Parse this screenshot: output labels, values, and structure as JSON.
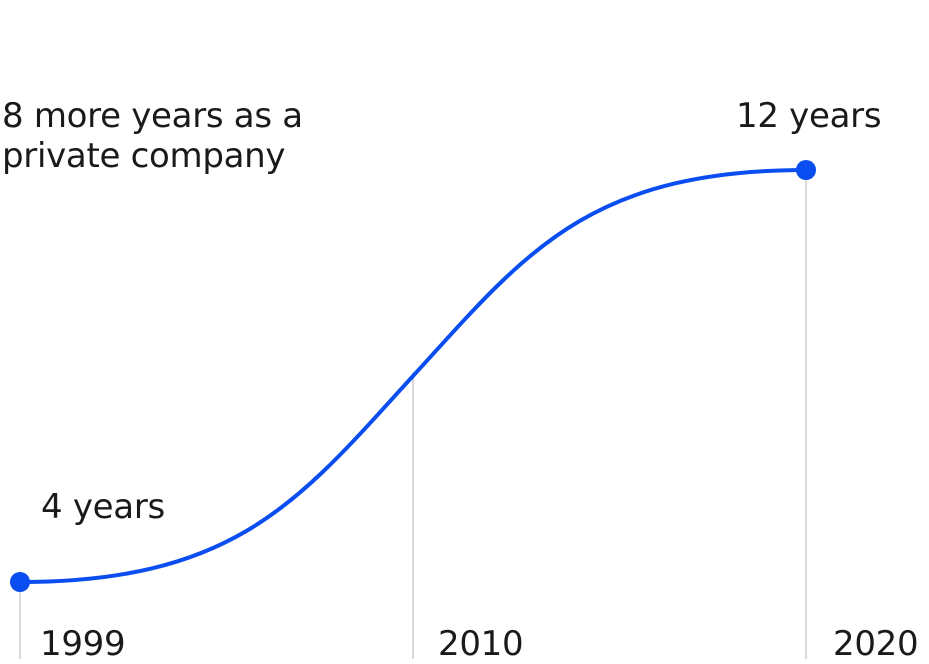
{
  "chart_data": {
    "type": "line",
    "x": [
      "1999",
      "2010",
      "2020"
    ],
    "series": [
      {
        "values": [
          4,
          null,
          12
        ]
      }
    ],
    "ylim": [
      4,
      12
    ],
    "annotations": {
      "start": "4 years",
      "end": "12 years",
      "note": "8 more years as a private company"
    },
    "grid": false,
    "colors": {
      "line": "#0a4df0",
      "guide": "#d9d9d9",
      "text": "#1a1a1a"
    }
  }
}
